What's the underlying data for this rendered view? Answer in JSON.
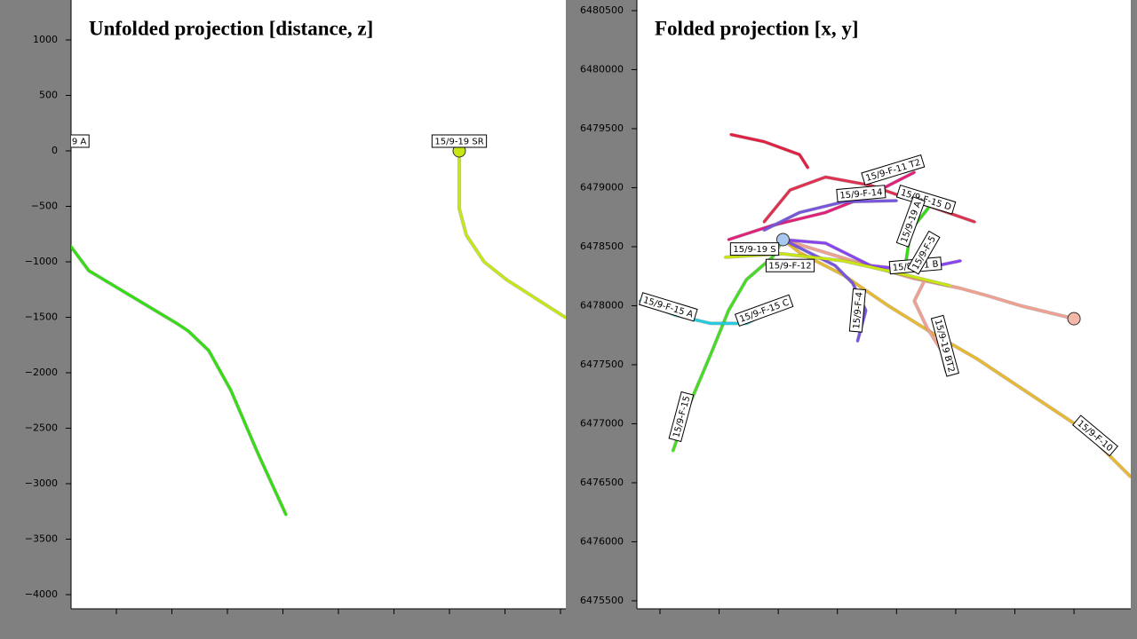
{
  "chart_data": [
    {
      "type": "line",
      "title": "Unfolded projection [distance, z]",
      "xlim": [
        92,
        4548
      ],
      "ylim": [
        -4128,
        1360
      ],
      "xticks": [
        500,
        1000,
        1500,
        2000,
        2500,
        3000,
        3500,
        4000,
        4500
      ],
      "yticks": [
        1000,
        500,
        0,
        {
          "value": -500,
          "label": "−500"
        },
        {
          "value": -1000,
          "label": "−1000"
        },
        {
          "value": -1500,
          "label": "−1500"
        },
        {
          "value": -2000,
          "label": "−2000"
        },
        {
          "value": -2500,
          "label": "−2500"
        },
        {
          "value": -3000,
          "label": "−3000"
        },
        {
          "value": -3500,
          "label": "−3500"
        },
        {
          "value": -4000,
          "label": "−4000"
        }
      ],
      "series": [
        {
          "color": "#33dd11",
          "x": [
            92,
            252,
            652,
            1052,
            1148,
            1332,
            1532,
            1772,
            2028
          ],
          "values": [
            -864,
            -1080,
            -1320,
            -1560,
            -1624,
            -1800,
            -2160,
            -2720,
            -3280
          ]
        },
        {
          "color": "#c8e614",
          "x": [
            3588,
            3588,
            3652,
            3812,
            4012,
            4548
          ],
          "values": [
            0,
            -520,
            -760,
            -1000,
            -1160,
            -1504
          ]
        }
      ],
      "annotations": [
        {
          "text": "9 A",
          "x": 164,
          "y": 88,
          "angle": 0
        },
        {
          "text": "15/9-19 SR",
          "x": 3588,
          "y": 88,
          "angle": 0
        }
      ],
      "markers": [
        {
          "x": 3588,
          "y": 0,
          "color": "#c8e614"
        }
      ]
    },
    {
      "type": "line",
      "title": "Folded projection [x, y]",
      "xlim": [
        433805,
        437980
      ],
      "ylim": [
        6475432,
        6480590
      ],
      "xticks": [
        434000,
        434500,
        435000,
        435500,
        436000,
        436500,
        437000,
        437500
      ],
      "yticks": [
        6475500,
        6476000,
        6476500,
        6477000,
        6477500,
        6478000,
        6478500,
        6479000,
        6479500,
        6480000,
        6480500
      ],
      "series": [
        {
          "color": "#44dd22",
          "x": [
            434110,
            434240,
            434430,
            434580,
            434730,
            434950,
            435040
          ],
          "values": [
            6476770,
            6477140,
            6477590,
            6477960,
            6478220,
            6478410,
            6478560
          ]
        },
        {
          "color": "#e8b830",
          "x": [
            435040,
            435180,
            435550,
            435930,
            436300,
            436680,
            437130,
            437580,
            437980
          ],
          "values": [
            6478560,
            6478450,
            6478260,
            6478000,
            6477770,
            6477550,
            6477250,
            6476950,
            6476550
          ]
        },
        {
          "color": "#f0a090",
          "x": [
            435040,
            435630,
            436150,
            436530,
            436750,
            437050,
            437500,
            null,
            436230,
            436150,
            436260,
            436380,
            436420
          ],
          "values": [
            6478560,
            6478380,
            6478230,
            6478150,
            6478090,
            6478000,
            6477890,
            null,
            6478200,
            6478040,
            6477810,
            6477620,
            6477440
          ]
        },
        {
          "color": "#e0207a",
          "x": [
            434580,
            434950,
            435400,
            435780,
            436150
          ],
          "values": [
            6478560,
            6478680,
            6478790,
            6478940,
            6479130
          ]
        },
        {
          "color": "#7755dd",
          "x": [
            434880,
            435180,
            435550,
            436000
          ],
          "values": [
            6478640,
            6478790,
            6478880,
            6478890
          ]
        },
        {
          "color": "#e03050",
          "x": [
            434880,
            435100,
            435400,
            435780,
            436230,
            436660
          ],
          "values": [
            6478710,
            6478980,
            6479090,
            6479020,
            6478860,
            6478710
          ]
        },
        {
          "color": "#8844ee",
          "x": [
            435040,
            435400,
            435780,
            436150,
            436540
          ],
          "values": [
            6478560,
            6478530,
            6478340,
            6478300,
            6478380
          ]
        },
        {
          "color": "#22ccdd",
          "x": [
            433830,
            434130,
            434430,
            434730,
            435030
          ],
          "values": [
            6478040,
            6477920,
            6477850,
            6477850,
            6478000
          ]
        },
        {
          "color": "#7755dd",
          "x": [
            435040,
            435480,
            435630,
            435740,
            435670
          ],
          "values": [
            6478560,
            6478340,
            6478190,
            6477960,
            6477700
          ]
        },
        {
          "color": "#e02040",
          "x": [
            434600,
            434880,
            435180,
            435250
          ],
          "values": [
            6479450,
            6479390,
            6479280,
            6479170
          ]
        },
        {
          "color": "#c8e614",
          "x": [
            434550,
            435030,
            435550,
            436080,
            436450
          ],
          "values": [
            6478410,
            6478440,
            6478380,
            6478260,
            6478170
          ]
        },
        {
          "color": "#33dd11",
          "x": [
            436270,
            436120,
            436080
          ],
          "values": [
            6478830,
            6478640,
            6478380
          ]
        }
      ],
      "annotations": [
        {
          "text": "15/9-F-15",
          "x": 434180,
          "y": 6477060,
          "angle": -75
        },
        {
          "text": "15/9-F-10",
          "x": 437680,
          "y": 6476900,
          "angle": 40
        },
        {
          "text": "15/9-19 BT2",
          "x": 436410,
          "y": 6477660,
          "angle": 75
        },
        {
          "text": "15/9-F-11 T2",
          "x": 435970,
          "y": 6479150,
          "angle": -17
        },
        {
          "text": "15/9-F-14",
          "x": 435700,
          "y": 6478950,
          "angle": -5
        },
        {
          "text": "15/9-F-15 D",
          "x": 436250,
          "y": 6478900,
          "angle": 17
        },
        {
          "text": "15/9-F-1 B",
          "x": 436160,
          "y": 6478340,
          "angle": -5
        },
        {
          "text": "15/9-F-15 A",
          "x": 434070,
          "y": 6477990,
          "angle": 17
        },
        {
          "text": "15/9-F-4",
          "x": 435670,
          "y": 6477960,
          "angle": -85
        },
        {
          "text": "15/9-19 S",
          "x": 434800,
          "y": 6478480,
          "angle": 0
        },
        {
          "text": "15/9-F-5",
          "x": 436230,
          "y": 6478450,
          "angle": -60
        },
        {
          "text": "15/9-F-15 C",
          "x": 434880,
          "y": 6477960,
          "angle": -20
        },
        {
          "text": "15/9-F-12",
          "x": 435100,
          "y": 6478340,
          "angle": 0
        },
        {
          "text": "15/9-19 A",
          "x": 436120,
          "y": 6478710,
          "angle": -70
        }
      ],
      "markers": [
        {
          "x": 435040,
          "y": 6478560,
          "color": "#a8c8f0"
        },
        {
          "x": 437500,
          "y": 6477890,
          "color": "#f4b8a8"
        }
      ]
    }
  ]
}
